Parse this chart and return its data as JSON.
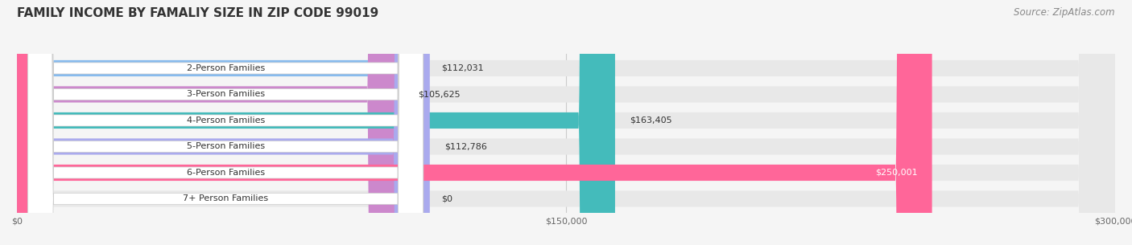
{
  "title": "FAMILY INCOME BY FAMALIY SIZE IN ZIP CODE 99019",
  "source": "Source: ZipAtlas.com",
  "categories": [
    "2-Person Families",
    "3-Person Families",
    "4-Person Families",
    "5-Person Families",
    "6-Person Families",
    "7+ Person Families"
  ],
  "values": [
    112031,
    105625,
    163405,
    112786,
    250001,
    0
  ],
  "bar_colors": [
    "#88bbee",
    "#cc88cc",
    "#44bbbb",
    "#aaaaee",
    "#ff6699",
    "#f5d5aa"
  ],
  "value_labels": [
    "$112,031",
    "$105,625",
    "$163,405",
    "$112,786",
    "$250,001",
    "$0"
  ],
  "xlim": [
    0,
    300000
  ],
  "xticks": [
    0,
    150000,
    300000
  ],
  "xtick_labels": [
    "$0",
    "$150,000",
    "$300,000"
  ],
  "bg_color": "#f5f5f5",
  "bar_bg_color": "#e8e8e8",
  "title_fontsize": 11,
  "source_fontsize": 8.5,
  "label_fontsize": 8,
  "bar_height": 0.62
}
